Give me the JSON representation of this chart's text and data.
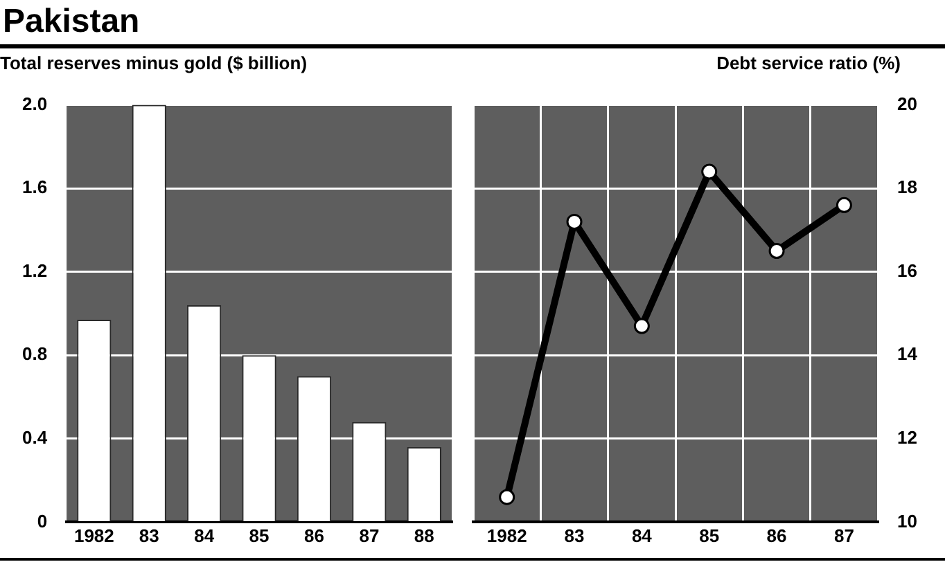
{
  "chart_data": [
    {
      "type": "bar",
      "title": "Pakistan",
      "ylabel": "Total reserves minus gold ($ billion)",
      "categories": [
        "1982",
        "83",
        "84",
        "85",
        "86",
        "87",
        "88"
      ],
      "series": [
        {
          "color": "#ffffff",
          "values": [
            0.97,
            2.0,
            1.04,
            0.8,
            0.7,
            0.48,
            0.36
          ]
        }
      ],
      "ylim": [
        0,
        2.0
      ],
      "yticks": [
        0,
        {
          "value": 0.4,
          "label": "0.4"
        },
        {
          "value": 0.8,
          "label": "0.8"
        },
        {
          "value": 1.2,
          "label": "1.2"
        },
        {
          "value": 1.6,
          "label": "1.6"
        },
        {
          "value": 2.0,
          "label": "2.0"
        }
      ],
      "grid": "y",
      "legend": false
    },
    {
      "type": "line",
      "y2label": "Debt service ratio (%)",
      "categories": [
        "1982",
        "83",
        "84",
        "85",
        "86",
        "87"
      ],
      "series": [
        {
          "color": "#000000",
          "axis": "y2",
          "values": [
            10.6,
            17.2,
            14.7,
            18.4,
            16.5,
            17.6
          ]
        }
      ],
      "y2lim": [
        10,
        20
      ],
      "y2ticks": [
        10,
        12,
        14,
        16,
        18,
        20
      ],
      "grid": true,
      "legend": false,
      "marker": "circle",
      "line_style": "solid"
    }
  ]
}
